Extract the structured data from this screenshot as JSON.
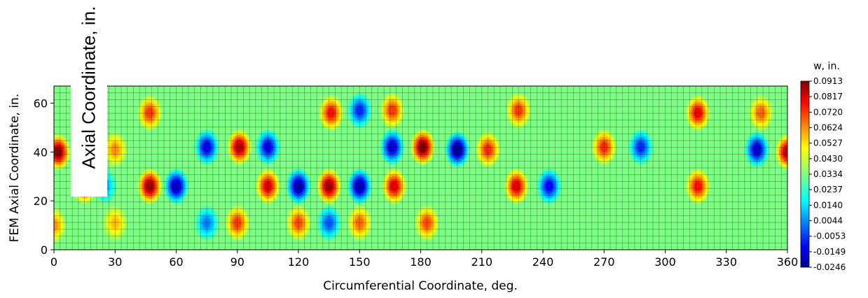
{
  "chart_data": {
    "type": "heatmap",
    "title": "",
    "xlabel": "Circumferential Coordinate, deg.",
    "ylabel": "FEM Axial Coordinate, in.",
    "overlay_label": "Axial Coordinate, in.",
    "xlim": [
      0,
      360
    ],
    "ylim": [
      0,
      67
    ],
    "xticks": [
      "0",
      "30",
      "60",
      "90",
      "120",
      "150",
      "180",
      "210",
      "240",
      "270",
      "300",
      "330",
      "360"
    ],
    "yticks": [
      "0",
      "20",
      "40",
      "60"
    ],
    "colorbar": {
      "title": "w, in.",
      "min": -0.0246,
      "max": 0.0913,
      "colormap": "jet",
      "labels": [
        "0.0913",
        "0.0817",
        "0.0720",
        "0.0624",
        "0.0527",
        "0.0430",
        "0.0334",
        "0.0237",
        "0.0140",
        "0.0044",
        "-0.0053",
        "-0.0149",
        "-0.0246"
      ]
    },
    "mesh_lines": true,
    "series": [
      {
        "values": [
          [
            2,
            40,
            0.09
          ],
          [
            30,
            41,
            0.06
          ],
          [
            47,
            26,
            0.088
          ],
          [
            60,
            26,
            -0.018
          ],
          [
            75,
            42,
            -0.012
          ],
          [
            91,
            42,
            0.085
          ],
          [
            105,
            42,
            -0.012
          ],
          [
            120,
            26,
            -0.02
          ],
          [
            135,
            26,
            0.088
          ],
          [
            150,
            26,
            -0.02
          ],
          [
            166,
            42,
            -0.015
          ],
          [
            181,
            42,
            0.091
          ],
          [
            198,
            41,
            -0.023
          ],
          [
            213,
            41,
            0.072
          ],
          [
            227,
            26,
            0.08
          ],
          [
            243,
            26,
            -0.01
          ],
          [
            270,
            42,
            0.072
          ],
          [
            288,
            42,
            -0.005
          ],
          [
            316,
            26,
            0.075
          ],
          [
            345,
            41,
            -0.015
          ],
          [
            360,
            40,
            0.085
          ],
          [
            136,
            56,
            0.075
          ],
          [
            150,
            57,
            -0.005
          ],
          [
            166,
            57,
            0.07
          ],
          [
            228,
            57,
            0.07
          ],
          [
            316,
            56,
            0.078
          ],
          [
            347,
            56,
            0.065
          ],
          [
            47,
            56,
            0.07
          ],
          [
            25,
            26,
            0.01
          ],
          [
            15,
            26,
            0.075
          ],
          [
            90,
            11,
            0.07
          ],
          [
            120,
            11,
            0.068
          ],
          [
            105,
            26,
            0.08
          ],
          [
            183,
            11,
            0.068
          ],
          [
            75,
            11,
            0.005
          ],
          [
            0,
            10,
            0.06
          ],
          [
            30,
            11,
            0.055
          ],
          [
            135,
            11,
            0.0
          ],
          [
            150,
            11,
            0.065
          ],
          [
            167,
            26,
            0.08
          ]
        ]
      }
    ]
  }
}
